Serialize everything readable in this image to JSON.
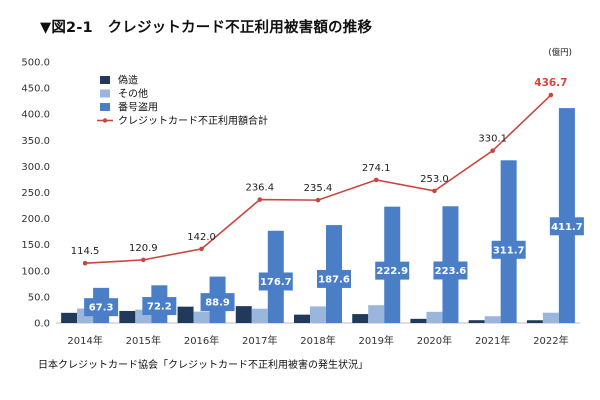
{
  "title": "▼図2-1　クレジットカード不正利用被害額の推移",
  "unit": "(億円)",
  "source": "日本クレジットカード協会「クレジットカード不正利用被害の発生状況」",
  "chart_data": {
    "type": "bar",
    "categories": [
      "2014年",
      "2015年",
      "2016年",
      "2017年",
      "2018年",
      "2019年",
      "2020年",
      "2021年",
      "2022年"
    ],
    "series": [
      {
        "name": "偽造",
        "kind": "bar",
        "color": "#213a5c",
        "values": [
          19.5,
          23.1,
          31.3,
          32.3,
          16.0,
          17.1,
          8.0,
          5.4,
          5.3
        ]
      },
      {
        "name": "その他",
        "kind": "bar",
        "color": "#9bb6dd",
        "values": [
          27.7,
          25.6,
          21.8,
          27.4,
          31.8,
          34.1,
          21.4,
          13.0,
          19.7
        ]
      },
      {
        "name": "番号盗用",
        "kind": "bar",
        "color": "#4a7fc7",
        "values": [
          67.3,
          72.2,
          88.9,
          176.7,
          187.6,
          222.9,
          223.6,
          311.7,
          411.7
        ]
      },
      {
        "name": "クレジットカード不正利用額合計",
        "kind": "line",
        "color": "#c8473d",
        "values": [
          114.5,
          120.9,
          142.0,
          236.4,
          235.4,
          274.1,
          253.0,
          330.1,
          436.7
        ]
      }
    ],
    "bar_value_labels": [
      "67.3",
      "72.2",
      "88.9",
      "176.7",
      "187.6",
      "222.9",
      "223.6",
      "311.7",
      "411.7"
    ],
    "line_value_labels": [
      "114.5",
      "120.9",
      "142.0",
      "236.4",
      "235.4",
      "274.1",
      "253.0",
      "330.1",
      "436.7"
    ],
    "y_ticks": [
      "0.0",
      "50.0",
      "100.0",
      "150.0",
      "200.0",
      "250.0",
      "300.0",
      "350.0",
      "400.0",
      "450.0",
      "500.0"
    ],
    "ylim": [
      0,
      500
    ],
    "grid": false,
    "legend": "top-left",
    "highlight_color": "#d9453a"
  }
}
